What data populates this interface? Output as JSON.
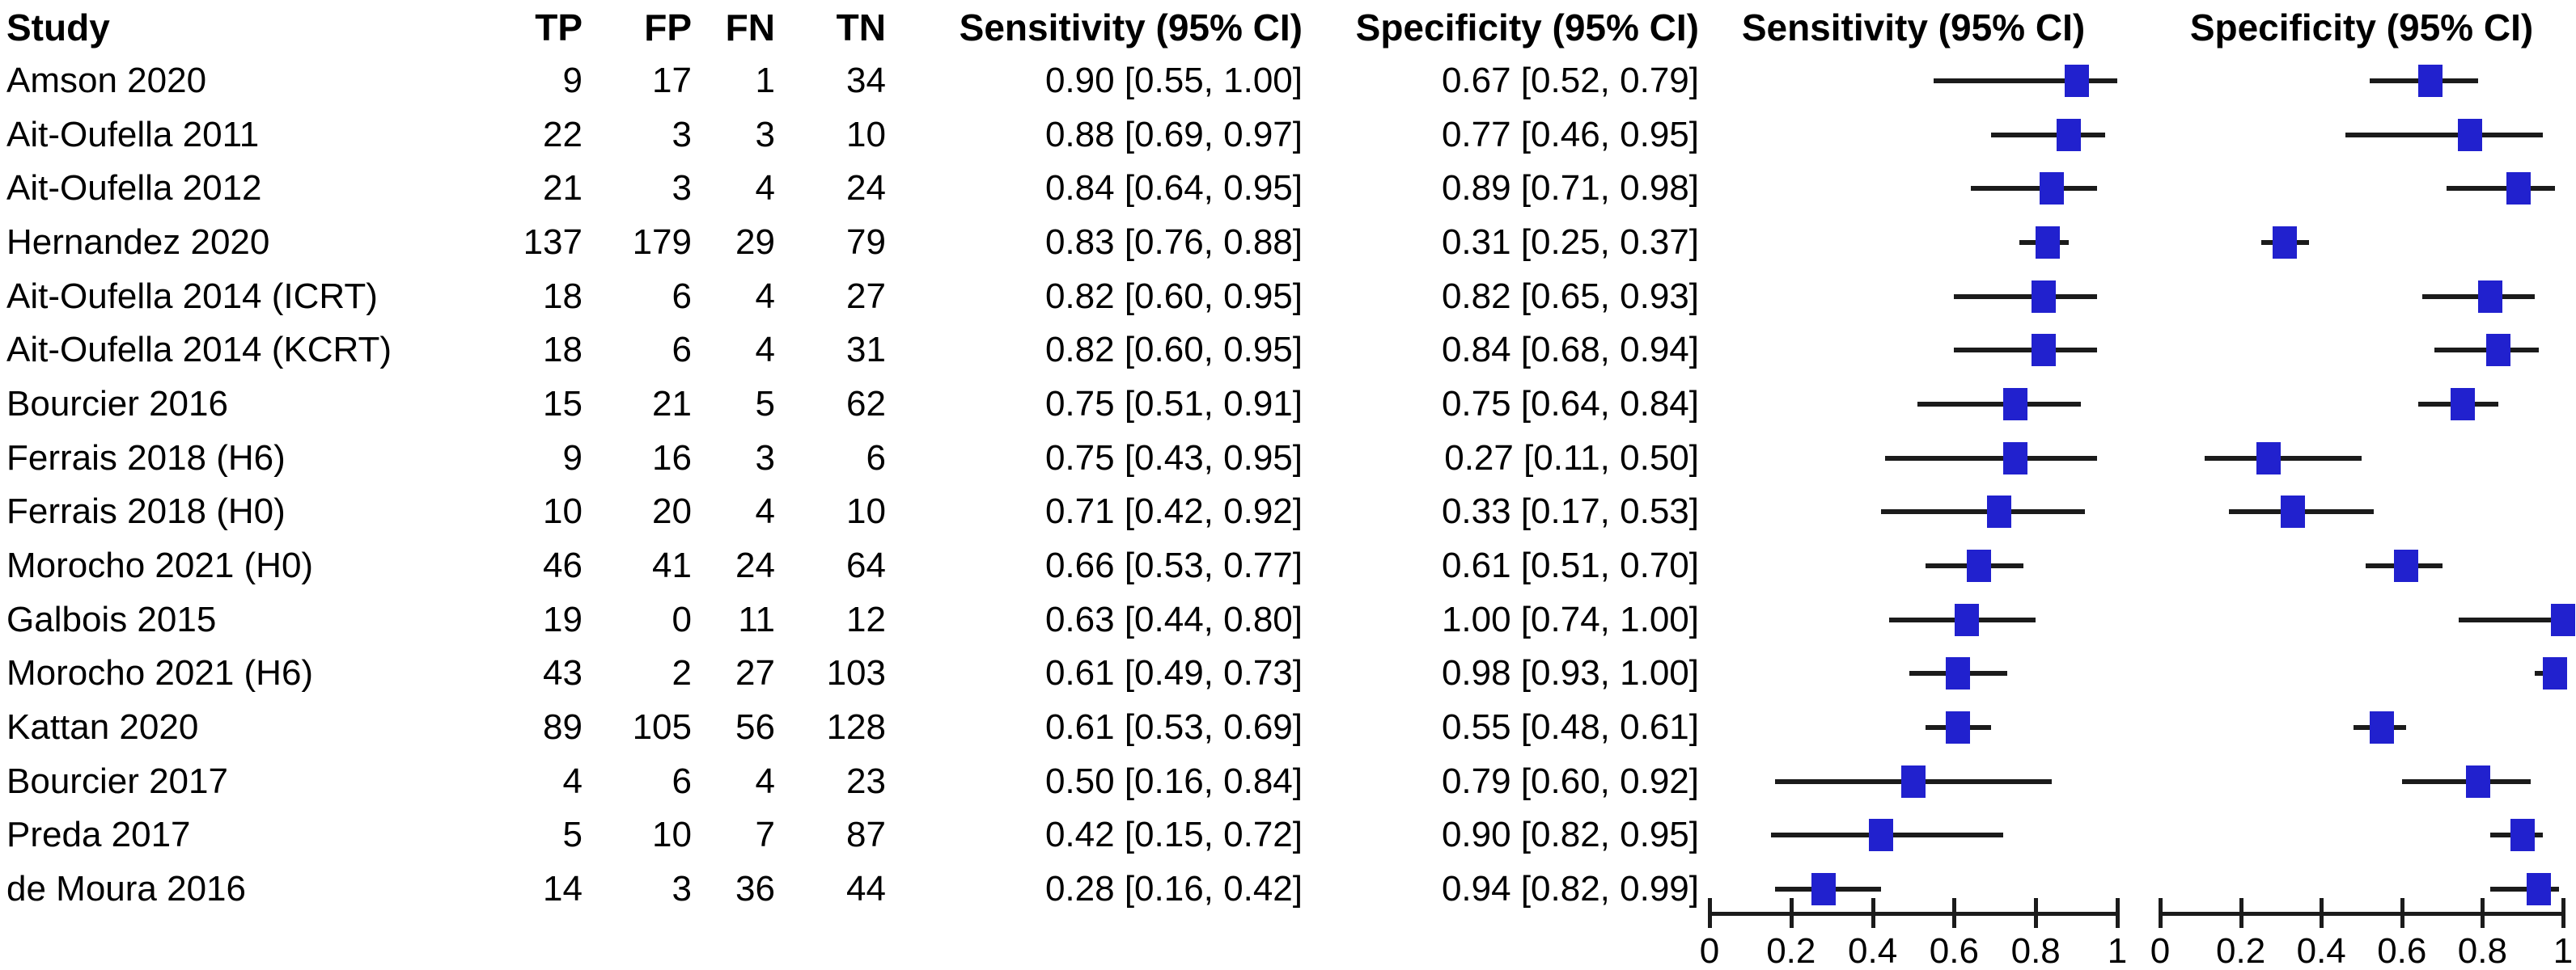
{
  "chart_data": {
    "type": "table",
    "subtype": "forest-plot-diagnostic-accuracy",
    "columns": {
      "study": "Study",
      "tp": "TP",
      "fp": "FP",
      "fn": "FN",
      "tn": "TN",
      "sensitivity": "Sensitivity (95% CI)",
      "specificity": "Specificity (95% CI)",
      "sensitivity_plot": "Sensitivity (95% CI)",
      "specificity_plot": "Specificity (95% CI)"
    },
    "axis": {
      "min": 0,
      "max": 1,
      "ticks": [
        "0",
        "0.2",
        "0.4",
        "0.6",
        "0.8",
        "1"
      ],
      "grid": false
    },
    "colors": {
      "marker_blue": "#2121CE",
      "ci_line": "#1b1b1b",
      "text": "#000000",
      "background": "#ffffff"
    },
    "studies": [
      {
        "study": "Amson 2020",
        "tp": 9,
        "fp": 17,
        "fn": 1,
        "tn": 34,
        "sens": 0.9,
        "sens_lo": 0.55,
        "sens_hi": 1.0,
        "sens_text": "0.90 [0.55, 1.00]",
        "spec": 0.67,
        "spec_lo": 0.52,
        "spec_hi": 0.79,
        "spec_text": "0.67 [0.52, 0.79]"
      },
      {
        "study": "Ait-Oufella 2011",
        "tp": 22,
        "fp": 3,
        "fn": 3,
        "tn": 10,
        "sens": 0.88,
        "sens_lo": 0.69,
        "sens_hi": 0.97,
        "sens_text": "0.88 [0.69, 0.97]",
        "spec": 0.77,
        "spec_lo": 0.46,
        "spec_hi": 0.95,
        "spec_text": "0.77 [0.46, 0.95]"
      },
      {
        "study": "Ait-Oufella 2012",
        "tp": 21,
        "fp": 3,
        "fn": 4,
        "tn": 24,
        "sens": 0.84,
        "sens_lo": 0.64,
        "sens_hi": 0.95,
        "sens_text": "0.84 [0.64, 0.95]",
        "spec": 0.89,
        "spec_lo": 0.71,
        "spec_hi": 0.98,
        "spec_text": "0.89 [0.71, 0.98]"
      },
      {
        "study": "Hernandez 2020",
        "tp": 137,
        "fp": 179,
        "fn": 29,
        "tn": 79,
        "sens": 0.83,
        "sens_lo": 0.76,
        "sens_hi": 0.88,
        "sens_text": "0.83 [0.76, 0.88]",
        "spec": 0.31,
        "spec_lo": 0.25,
        "spec_hi": 0.37,
        "spec_text": "0.31 [0.25, 0.37]"
      },
      {
        "study": "Ait-Oufella 2014 (ICRT)",
        "tp": 18,
        "fp": 6,
        "fn": 4,
        "tn": 27,
        "sens": 0.82,
        "sens_lo": 0.6,
        "sens_hi": 0.95,
        "sens_text": "0.82 [0.60, 0.95]",
        "spec": 0.82,
        "spec_lo": 0.65,
        "spec_hi": 0.93,
        "spec_text": "0.82 [0.65, 0.93]"
      },
      {
        "study": "Ait-Oufella 2014 (KCRT)",
        "tp": 18,
        "fp": 6,
        "fn": 4,
        "tn": 31,
        "sens": 0.82,
        "sens_lo": 0.6,
        "sens_hi": 0.95,
        "sens_text": "0.82 [0.60, 0.95]",
        "spec": 0.84,
        "spec_lo": 0.68,
        "spec_hi": 0.94,
        "spec_text": "0.84 [0.68, 0.94]"
      },
      {
        "study": "Bourcier 2016",
        "tp": 15,
        "fp": 21,
        "fn": 5,
        "tn": 62,
        "sens": 0.75,
        "sens_lo": 0.51,
        "sens_hi": 0.91,
        "sens_text": "0.75 [0.51, 0.91]",
        "spec": 0.75,
        "spec_lo": 0.64,
        "spec_hi": 0.84,
        "spec_text": "0.75 [0.64, 0.84]"
      },
      {
        "study": "Ferrais 2018 (H6)",
        "tp": 9,
        "fp": 16,
        "fn": 3,
        "tn": 6,
        "sens": 0.75,
        "sens_lo": 0.43,
        "sens_hi": 0.95,
        "sens_text": "0.75 [0.43, 0.95]",
        "spec": 0.27,
        "spec_lo": 0.11,
        "spec_hi": 0.5,
        "spec_text": "0.27 [0.11, 0.50]"
      },
      {
        "study": "Ferrais 2018 (H0)",
        "tp": 10,
        "fp": 20,
        "fn": 4,
        "tn": 10,
        "sens": 0.71,
        "sens_lo": 0.42,
        "sens_hi": 0.92,
        "sens_text": "0.71 [0.42, 0.92]",
        "spec": 0.33,
        "spec_lo": 0.17,
        "spec_hi": 0.53,
        "spec_text": "0.33 [0.17, 0.53]"
      },
      {
        "study": "Morocho 2021 (H0)",
        "tp": 46,
        "fp": 41,
        "fn": 24,
        "tn": 64,
        "sens": 0.66,
        "sens_lo": 0.53,
        "sens_hi": 0.77,
        "sens_text": "0.66 [0.53, 0.77]",
        "spec": 0.61,
        "spec_lo": 0.51,
        "spec_hi": 0.7,
        "spec_text": "0.61 [0.51, 0.70]"
      },
      {
        "study": "Galbois 2015",
        "tp": 19,
        "fp": 0,
        "fn": 11,
        "tn": 12,
        "sens": 0.63,
        "sens_lo": 0.44,
        "sens_hi": 0.8,
        "sens_text": "0.63 [0.44, 0.80]",
        "spec": 1.0,
        "spec_lo": 0.74,
        "spec_hi": 1.0,
        "spec_text": "1.00 [0.74, 1.00]"
      },
      {
        "study": "Morocho 2021 (H6)",
        "tp": 43,
        "fp": 2,
        "fn": 27,
        "tn": 103,
        "sens": 0.61,
        "sens_lo": 0.49,
        "sens_hi": 0.73,
        "sens_text": "0.61 [0.49, 0.73]",
        "spec": 0.98,
        "spec_lo": 0.93,
        "spec_hi": 1.0,
        "spec_text": "0.98 [0.93, 1.00]"
      },
      {
        "study": "Kattan 2020",
        "tp": 89,
        "fp": 105,
        "fn": 56,
        "tn": 128,
        "sens": 0.61,
        "sens_lo": 0.53,
        "sens_hi": 0.69,
        "sens_text": "0.61 [0.53, 0.69]",
        "spec": 0.55,
        "spec_lo": 0.48,
        "spec_hi": 0.61,
        "spec_text": "0.55 [0.48, 0.61]"
      },
      {
        "study": "Bourcier 2017",
        "tp": 4,
        "fp": 6,
        "fn": 4,
        "tn": 23,
        "sens": 0.5,
        "sens_lo": 0.16,
        "sens_hi": 0.84,
        "sens_text": "0.50 [0.16, 0.84]",
        "spec": 0.79,
        "spec_lo": 0.6,
        "spec_hi": 0.92,
        "spec_text": "0.79 [0.60, 0.92]"
      },
      {
        "study": "Preda 2017",
        "tp": 5,
        "fp": 10,
        "fn": 7,
        "tn": 87,
        "sens": 0.42,
        "sens_lo": 0.15,
        "sens_hi": 0.72,
        "sens_text": "0.42 [0.15, 0.72]",
        "spec": 0.9,
        "spec_lo": 0.82,
        "spec_hi": 0.95,
        "spec_text": "0.90 [0.82, 0.95]"
      },
      {
        "study": "de Moura 2016",
        "tp": 14,
        "fp": 3,
        "fn": 36,
        "tn": 44,
        "sens": 0.28,
        "sens_lo": 0.16,
        "sens_hi": 0.42,
        "sens_text": "0.28 [0.16, 0.42]",
        "spec": 0.94,
        "spec_lo": 0.82,
        "spec_hi": 0.99,
        "spec_text": "0.94 [0.82, 0.99]"
      }
    ]
  }
}
